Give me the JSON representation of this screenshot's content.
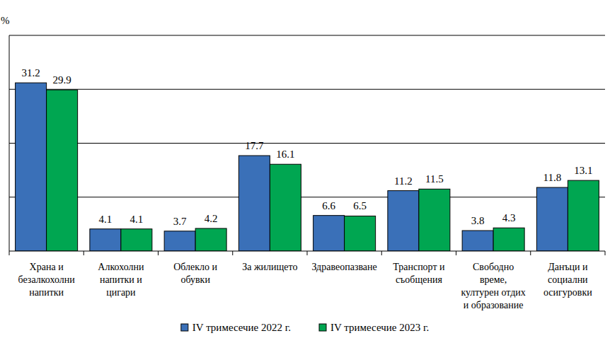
{
  "chart_data": {
    "type": "bar",
    "y_label": "%",
    "categories": [
      "Храна и\nбезалкохолни\nнапитки",
      "Алкохолни\nнапитки и\nцигари",
      "Облекло и\nобувки",
      "За жилището",
      "Здравеопазване",
      "Транспорт и\nсъобщения",
      "Свободно\nвреме,\nкултурен отдих\nи образование",
      "Данъци и\nсоциални\nосигуровки"
    ],
    "series": [
      {
        "name": "IV тримесечие 2022 г.",
        "color": "#3a70b8",
        "values": [
          31.2,
          4.1,
          3.7,
          17.7,
          6.6,
          11.2,
          3.8,
          11.8
        ]
      },
      {
        "name": "IV тримесечие 2023 г.",
        "color": "#00a651",
        "values": [
          29.9,
          4.1,
          4.2,
          16.1,
          6.5,
          11.5,
          4.3,
          13.1
        ]
      }
    ],
    "ylim": [
      0,
      40
    ],
    "yticks": [
      0,
      10,
      20,
      30,
      40
    ],
    "grid": true,
    "data_labels": true,
    "tick_labels": "x",
    "legend": "bottom"
  }
}
